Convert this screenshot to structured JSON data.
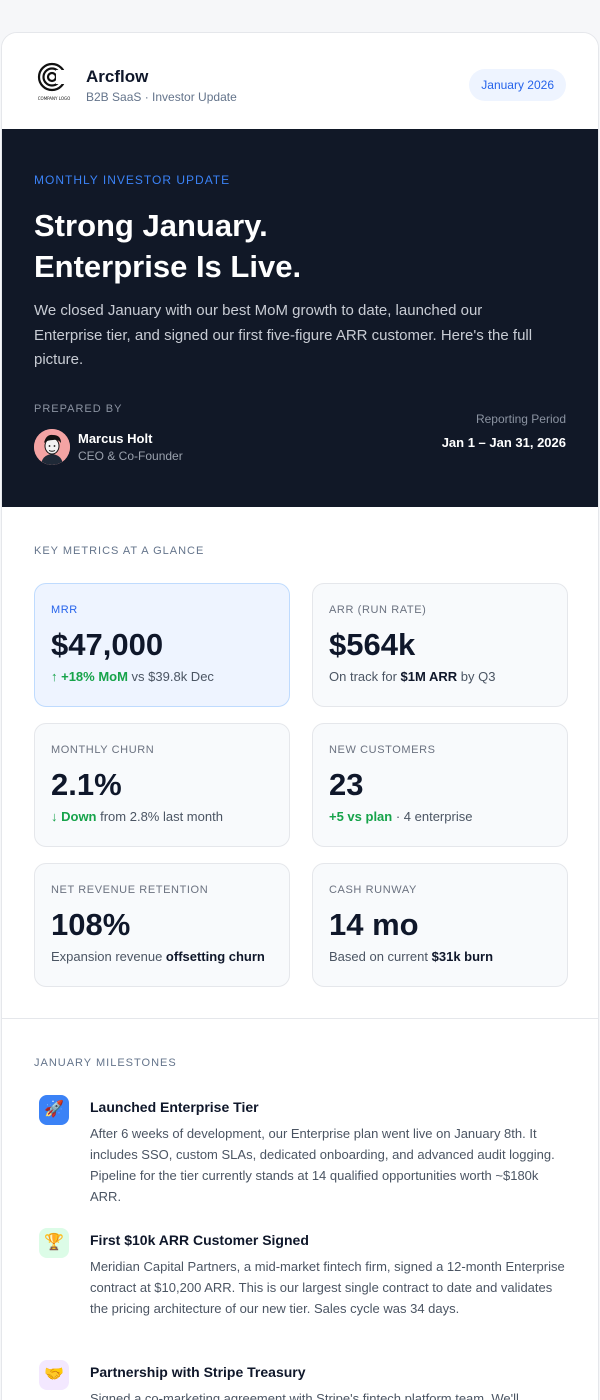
{
  "header": {
    "brand_name": "Arcflow",
    "brand_sub": "B2B SaaS · Investor Update",
    "logo_caption": "COMPANY LOGO",
    "period_pill": "January 2026"
  },
  "hero": {
    "eyebrow": "MONTHLY INVESTOR UPDATE",
    "title_line1": "Strong January.",
    "title_line2": "Enterprise Is Live.",
    "body": "We closed January with our best MoM growth to date, launched our Enterprise tier, and signed our first five-figure ARR customer. Here's the full picture.",
    "prepared_by_label": "PREPARED BY",
    "person_name": "Marcus Holt",
    "person_role": "CEO & Co-Founder",
    "period_label": "Reporting Period",
    "period_value": "Jan 1 – Jan 31, 2026"
  },
  "metrics": {
    "section_label": "KEY METRICS AT A GLANCE",
    "cards": [
      {
        "label": "MRR",
        "value": "$47,000",
        "sub_green": "↑ +18% MoM",
        "sub_rest": " vs $39.8k Dec"
      },
      {
        "label": "ARR (RUN RATE)",
        "value": "$564k",
        "sub_pre": "On track for ",
        "sub_bold": "$1M ARR",
        "sub_post": " by Q3"
      },
      {
        "label": "MONTHLY CHURN",
        "value": "2.1%",
        "sub_green": "↓ Down",
        "sub_rest": " from 2.8% last month"
      },
      {
        "label": "NEW CUSTOMERS",
        "value": "23",
        "sub_green": "+5 vs plan",
        "sub_rest": " · 4 enterprise"
      },
      {
        "label": "NET REVENUE RETENTION",
        "value": "108%",
        "sub_pre": "Expansion revenue ",
        "sub_bold": "offsetting churn",
        "sub_post": ""
      },
      {
        "label": "CASH RUNWAY",
        "value": "14 mo",
        "sub_pre": "Based on current ",
        "sub_bold": "$31k burn",
        "sub_post": ""
      }
    ]
  },
  "milestones": {
    "section_label": "JANUARY MILESTONES",
    "items": [
      {
        "icon": "🚀",
        "icon_bg": "#3b82f6",
        "title": "Launched Enterprise Tier",
        "body": "After 6 weeks of development, our Enterprise plan went live on January 8th. It includes SSO, custom SLAs, dedicated onboarding, and advanced audit logging. Pipeline for the tier currently stands at 14 qualified opportunities worth ~$180k ARR."
      },
      {
        "icon": "🏆",
        "icon_bg": "#dcfce7",
        "title": "First $10k ARR Customer Signed",
        "body": "Meridian Capital Partners, a mid-market fintech firm, signed a 12-month Enterprise contract at $10,200 ARR. This is our largest single contract to date and validates the pricing architecture of our new tier. Sales cycle was 34 days."
      },
      {
        "icon": "🤝",
        "icon_bg": "#f3e8ff",
        "title": "Partnership with Stripe Treasury",
        "body": "Signed a co-marketing agreement with Stripe's fintech platform team. We'll"
      }
    ]
  }
}
